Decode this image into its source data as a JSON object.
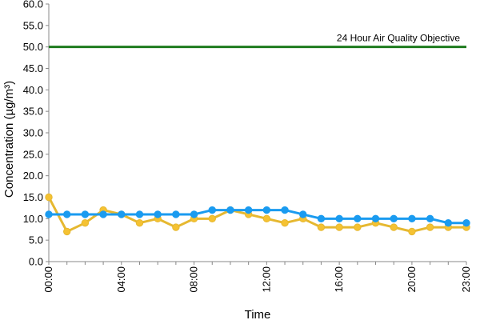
{
  "chart_data": {
    "type": "line",
    "xlabel": "Time",
    "ylabel": "Concentration (µg/m³)",
    "ylim": [
      0,
      60
    ],
    "y_ticks": [
      "0.0",
      "5.0",
      "10.0",
      "15.0",
      "20.0",
      "25.0",
      "30.0",
      "35.0",
      "40.0",
      "45.0",
      "50.0",
      "55.0",
      "60.0"
    ],
    "x_ticks": [
      "00:00",
      "04:00",
      "08:00",
      "12:00",
      "16:00",
      "20:00",
      "23:00"
    ],
    "x_tick_hours": [
      0,
      4,
      8,
      12,
      16,
      20,
      23
    ],
    "x_hours": [
      0,
      1,
      2,
      3,
      4,
      5,
      6,
      7,
      8,
      9,
      10,
      11,
      12,
      13,
      14,
      15,
      16,
      17,
      18,
      19,
      20,
      21,
      22,
      23
    ],
    "grid": false,
    "series": [
      {
        "color": "#f5c233",
        "line_color": "#e6b830",
        "values": [
          15,
          7,
          9,
          12,
          11,
          9,
          10,
          8,
          10,
          10,
          12,
          11,
          10,
          9,
          10,
          8,
          8,
          8,
          9,
          8,
          7,
          8,
          8,
          8
        ]
      },
      {
        "color": "#1a9bf0",
        "line_color": "#1a9bf0",
        "values": [
          11,
          11,
          11,
          11,
          11,
          11,
          11,
          11,
          11,
          12,
          12,
          12,
          12,
          12,
          11,
          10,
          10,
          10,
          10,
          10,
          10,
          10,
          9,
          9
        ]
      }
    ],
    "reference_line": {
      "value": 50,
      "label": "24 Hour Air Quality Objective",
      "color": "#1e7b1e"
    }
  }
}
